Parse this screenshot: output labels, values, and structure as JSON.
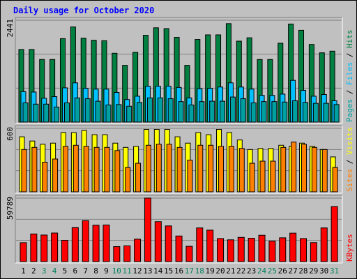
{
  "chart_data": {
    "type": "bar",
    "title": "Daily usage for October 2020",
    "days": [
      "1",
      "2",
      "3",
      "4",
      "5",
      "6",
      "7",
      "8",
      "9",
      "10",
      "11",
      "12",
      "13",
      "14",
      "15",
      "16",
      "17",
      "18",
      "19",
      "20",
      "21",
      "22",
      "23",
      "24",
      "25",
      "26",
      "27",
      "28",
      "29",
      "30",
      "31"
    ],
    "weekend_days": [
      "3",
      "4",
      "10",
      "11",
      "17",
      "18",
      "24",
      "25",
      "31"
    ],
    "panels": [
      {
        "id": "hits",
        "ymax": 2441,
        "ymax_label": "2441",
        "series": [
          {
            "name": "Hits",
            "color": "#008040",
            "values": [
              1740,
              1740,
              1500,
              1500,
              2000,
              2280,
              2010,
              1960,
              1950,
              1650,
              1360,
              1670,
              2080,
              2260,
              2240,
              2030,
              1360,
              1980,
              2090,
              2090,
              2360,
              1940,
              2020,
              1500,
              1500,
              1890,
              2350,
              2200,
              1860,
              1660,
              1700
            ]
          },
          {
            "name": "Files",
            "color": "#00c0ff",
            "values": [
              730,
              720,
              570,
              610,
              820,
              940,
              810,
              790,
              790,
              710,
              540,
              620,
              860,
              860,
              860,
              830,
              580,
              800,
              810,
              840,
              940,
              840,
              790,
              640,
              640,
              670,
              1000,
              760,
              620,
              660,
              510
            ]
          },
          {
            "name": "Pages",
            "color": "#00a0a0",
            "values": [
              460,
              430,
              430,
              360,
              460,
              580,
              560,
              500,
              410,
              420,
              380,
              470,
              580,
              580,
              560,
              490,
              410,
              490,
              500,
              500,
              600,
              560,
              460,
              490,
              490,
              480,
              510,
              470,
              450,
              450,
              420
            ]
          }
        ],
        "legend": [
          "Pages",
          "Files",
          "Hits"
        ]
      },
      {
        "id": "visits",
        "ymax": 600,
        "ymax_label": "600",
        "series": [
          {
            "name": "Visits",
            "color": "#ffff00",
            "values": [
              520,
              480,
              450,
              460,
              560,
              560,
              580,
              540,
              540,
              460,
              420,
              430,
              590,
              590,
              590,
              520,
              460,
              560,
              540,
              590,
              560,
              490,
              400,
              410,
              410,
              440,
              430,
              460,
              430,
              400,
              330
            ]
          },
          {
            "name": "Sites",
            "color": "#ff8000",
            "values": [
              400,
              420,
              280,
              310,
              430,
              440,
              430,
              420,
              420,
              390,
              230,
              270,
              440,
              450,
              450,
              420,
              300,
              440,
              440,
              430,
              430,
              410,
              270,
              290,
              290,
              420,
              470,
              450,
              420,
              400,
              230
            ]
          }
        ],
        "legend": [
          "Sites",
          "Visits"
        ]
      },
      {
        "id": "kbytes",
        "ymax": 59789,
        "ymax_label": "59789",
        "series": [
          {
            "name": "KBytes",
            "color": "#ff0000",
            "values": [
              17800,
              26000,
              25000,
              26900,
              20000,
              32000,
              38500,
              34200,
              34400,
              14100,
              14800,
              21100,
              59800,
              37600,
              33600,
              24100,
              14400,
              31700,
              29600,
              21700,
              20500,
              22800,
              22000,
              24800,
              19200,
              22400,
              26800,
              21700,
              17900,
              31700,
              51800
            ]
          }
        ],
        "legend": [
          "KBytes"
        ]
      }
    ]
  }
}
